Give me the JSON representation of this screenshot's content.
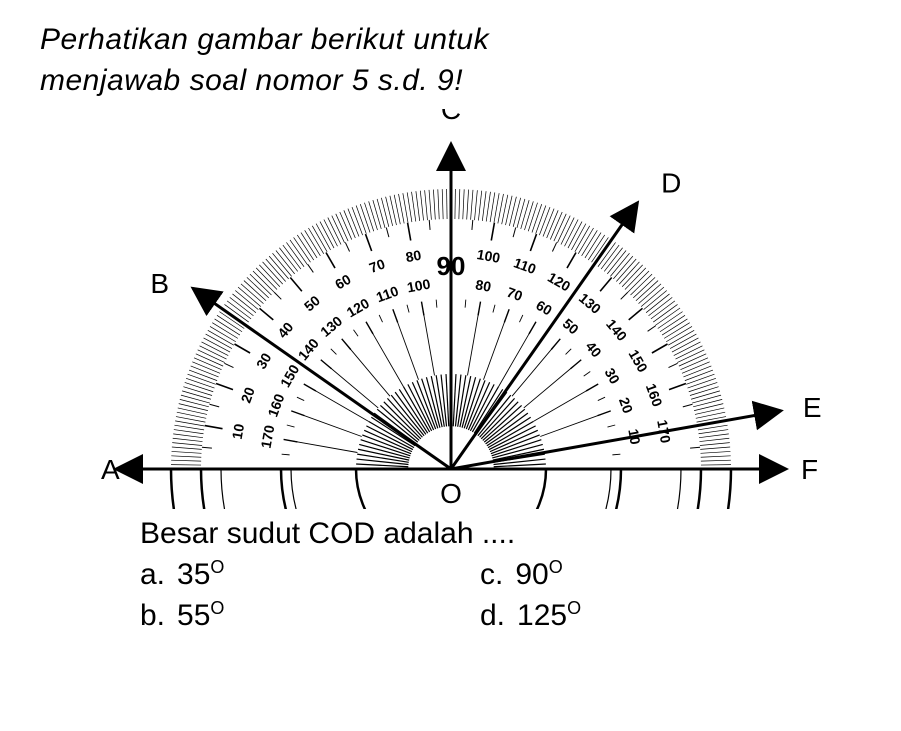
{
  "intro_line1": "Perhatikan gambar berikut untuk",
  "intro_line2": "menjawab soal nomor 5 s.d. 9!",
  "question": "Besar sudut COD adalah ....",
  "options": {
    "a": {
      "letter": "a.",
      "value": "35",
      "unit": "O"
    },
    "b": {
      "letter": "b.",
      "value": "55",
      "unit": "O"
    },
    "c": {
      "letter": "c.",
      "value": "90",
      "unit": "O"
    },
    "d": {
      "letter": "d.",
      "value": "125",
      "unit": "O"
    }
  },
  "labels": {
    "A": "A",
    "B": "B",
    "C": "C",
    "D": "D",
    "E": "E",
    "F": "F",
    "O": "O"
  },
  "protractor": {
    "type": "diagram",
    "outer_scale": [
      "10",
      "20",
      "30",
      "40",
      "50",
      "60",
      "70",
      "80",
      "90",
      "100",
      "110",
      "120",
      "130",
      "140",
      "150",
      "160",
      "170"
    ],
    "inner_scale": [
      "170",
      "160",
      "150",
      "140",
      "130",
      "120",
      "110",
      "100",
      "90",
      "80",
      "70",
      "60",
      "50",
      "40",
      "30",
      "20",
      "10"
    ],
    "center_label": "90",
    "ray_angles_deg": {
      "A": 180,
      "B": 145,
      "C": 90,
      "D": 55,
      "E": 10,
      "F": 0
    },
    "colors": {
      "background": "#ffffff",
      "stroke": "#000000",
      "hatch": "#000000",
      "text": "#000000"
    },
    "stroke_width": 2.5,
    "font_size_labels": 28,
    "font_size_ticks": 14
  }
}
